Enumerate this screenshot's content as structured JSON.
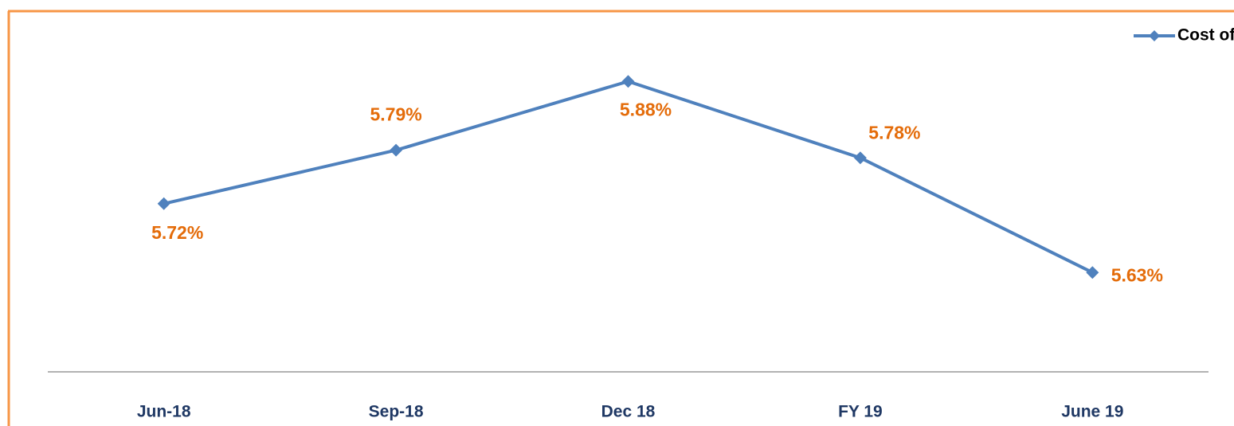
{
  "chart_data": {
    "type": "line",
    "categories": [
      "Jun-18",
      "Sep-18",
      "Dec 18",
      "FY 19",
      "June 19"
    ],
    "series": [
      {
        "name": "Cost of Funds",
        "color": "#4f81bd",
        "values": [
          5.72,
          5.79,
          5.88,
          5.78,
          5.63
        ],
        "value_labels": [
          "5.72%",
          "5.79%",
          "5.88%",
          "5.78%",
          "5.63%"
        ]
      }
    ],
    "ylim": [
      5.5,
      5.9
    ],
    "legend": "top-right"
  }
}
